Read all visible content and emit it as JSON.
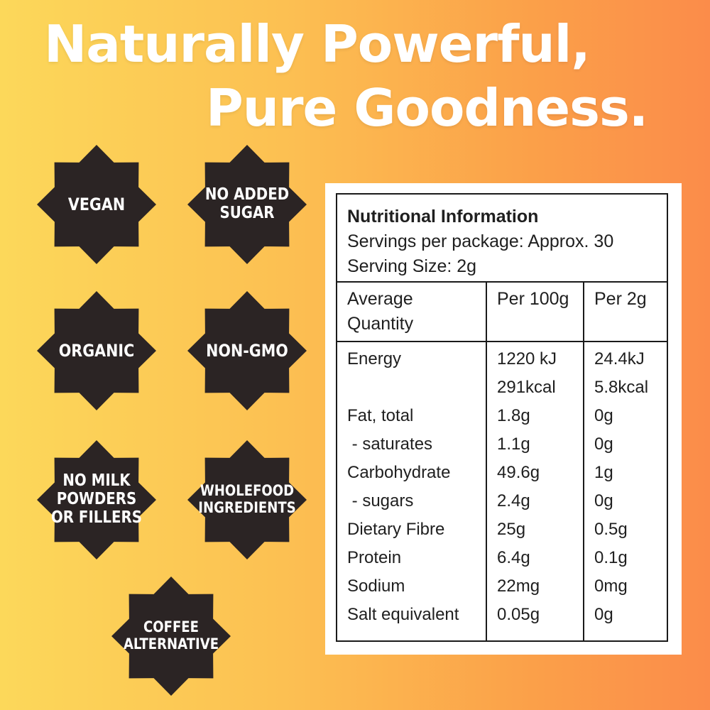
{
  "headline": {
    "line1": "Naturally Powerful,",
    "line2": "Pure Goodness."
  },
  "badges": {
    "vegan": "VEGAN",
    "no_added_sugar": "NO ADDED\nSUGAR",
    "organic": "ORGANIC",
    "non_gmo": "NON-GMO",
    "no_milk": "NO MILK\nPOWDERS\nOR FILLERS",
    "wholefood": "WHOLEFOOD\nINGREDIENTS",
    "coffee_alternative": "COFFEE\nALTERNATIVE"
  },
  "colors": {
    "badge_fill": "#2b2424",
    "gradient_start": "#fcd85a",
    "gradient_end": "#fb8c4a"
  },
  "nutrition": {
    "title": "Nutritional Information",
    "servings": "Servings per package: Approx. 30",
    "serving_size": "Serving Size: 2g",
    "columns": [
      "Average\nQuantity",
      "Per 100g",
      "Per 2g"
    ],
    "rows": [
      [
        "Energy",
        "1220 kJ",
        "24.4kJ"
      ],
      [
        "",
        "291kcal",
        "5.8kcal"
      ],
      [
        "Fat, total",
        "1.8g",
        "0g"
      ],
      [
        " - saturates",
        "1.1g",
        "0g"
      ],
      [
        "Carbohydrate",
        "49.6g",
        "1g"
      ],
      [
        " - sugars",
        "2.4g",
        "0g"
      ],
      [
        "Dietary Fibre",
        "25g",
        "0.5g"
      ],
      [
        "Protein",
        "6.4g",
        "0.1g"
      ],
      [
        "Sodium",
        "22mg",
        "0mg"
      ],
      [
        "Salt equivalent",
        "0.05g",
        "0g"
      ]
    ]
  }
}
